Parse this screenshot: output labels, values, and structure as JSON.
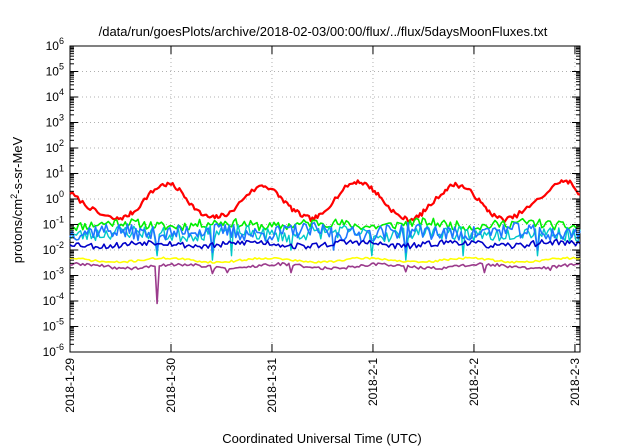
{
  "chart_data": {
    "type": "line",
    "title": "/data/run/goesPlots/archive/2018-02-03/00:00/flux/../flux/5daysMoonFluxes.txt",
    "xlabel": "Coordinated Universal Time (UTC)",
    "ylabel": {
      "base": "protons/cm",
      "sup": "2",
      "rest": "-s-sr-MeV"
    },
    "x_ticks": [
      "2018-1-29",
      "2018-1-30",
      "2018-1-31",
      "2018-2-1",
      "2018-2-2",
      "2018-2-3"
    ],
    "xlim_days": [
      0,
      5.05
    ],
    "y_scale": "log",
    "ylim_exp": [
      -6,
      6
    ],
    "y_ticks": [
      {
        "base": "10",
        "exp": "-6"
      },
      {
        "base": "10",
        "exp": "-5"
      },
      {
        "base": "10",
        "exp": "-4"
      },
      {
        "base": "10",
        "exp": "-3"
      },
      {
        "base": "10",
        "exp": "-2"
      },
      {
        "base": "10",
        "exp": "-1"
      },
      {
        "base": "10",
        "exp": "0"
      },
      {
        "base": "10",
        "exp": "1"
      },
      {
        "base": "10",
        "exp": "2"
      },
      {
        "base": "10",
        "exp": "3"
      },
      {
        "base": "10",
        "exp": "4"
      },
      {
        "base": "10",
        "exp": "5"
      },
      {
        "base": "10",
        "exp": "6"
      }
    ],
    "grid": true,
    "legend": "none",
    "series": [
      {
        "color": "#ff0000",
        "width": 2.2,
        "points": [
          [
            0,
            1.8
          ],
          [
            0.15,
            0.6
          ],
          [
            0.3,
            0.25
          ],
          [
            0.45,
            0.16
          ],
          [
            0.55,
            0.2
          ],
          [
            0.65,
            0.35
          ],
          [
            0.78,
            1.5
          ],
          [
            0.9,
            3.5
          ],
          [
            1.0,
            3.8
          ],
          [
            1.1,
            2.0
          ],
          [
            1.2,
            0.6
          ],
          [
            1.3,
            0.25
          ],
          [
            1.4,
            0.18
          ],
          [
            1.5,
            0.22
          ],
          [
            1.6,
            0.3
          ],
          [
            1.75,
            1.5
          ],
          [
            1.9,
            3.5
          ],
          [
            2.0,
            2.5
          ],
          [
            2.1,
            1.0
          ],
          [
            2.2,
            0.4
          ],
          [
            2.3,
            0.22
          ],
          [
            2.4,
            0.16
          ],
          [
            2.5,
            0.25
          ],
          [
            2.6,
            0.8
          ],
          [
            2.75,
            3.5
          ],
          [
            2.85,
            5.0
          ],
          [
            2.95,
            3.5
          ],
          [
            3.05,
            1.5
          ],
          [
            3.15,
            0.5
          ],
          [
            3.25,
            0.22
          ],
          [
            3.35,
            0.15
          ],
          [
            3.45,
            0.2
          ],
          [
            3.55,
            0.5
          ],
          [
            3.7,
            2.0
          ],
          [
            3.8,
            3.8
          ],
          [
            3.9,
            3.0
          ],
          [
            4.0,
            1.5
          ],
          [
            4.1,
            0.5
          ],
          [
            4.2,
            0.22
          ],
          [
            4.3,
            0.15
          ],
          [
            4.4,
            0.2
          ],
          [
            4.55,
            0.5
          ],
          [
            4.7,
            1.5
          ],
          [
            4.85,
            5.0
          ],
          [
            4.95,
            4.5
          ],
          [
            5.05,
            1.5
          ]
        ]
      },
      {
        "color": "#00ee00",
        "width": 1.6,
        "base": 0.1,
        "amp": 0.18,
        "seed": 11
      },
      {
        "color": "#00c8c8",
        "width": 1.4,
        "base": 0.045,
        "amp": 0.28,
        "seed": 23,
        "dips": [
          [
            0.86,
            0.006
          ],
          [
            1.4,
            0.004
          ],
          [
            1.6,
            0.006
          ],
          [
            2.18,
            0.01
          ],
          [
            2.98,
            0.006
          ],
          [
            3.32,
            0.004
          ],
          [
            3.9,
            0.006
          ],
          [
            4.62,
            0.006
          ]
        ]
      },
      {
        "color": "#1e78ff",
        "width": 1.6,
        "base": 0.05,
        "amp": 0.3,
        "seed": 37,
        "dips": [
          [
            0.86,
            0.01
          ],
          [
            1.4,
            0.008
          ],
          [
            2.6,
            0.01
          ],
          [
            3.32,
            0.008
          ],
          [
            4.62,
            0.01
          ]
        ]
      },
      {
        "color": "#0000c8",
        "width": 1.6,
        "base": 0.017,
        "amp": 0.12,
        "seed": 53
      },
      {
        "color": "#ffff00",
        "width": 1.6,
        "base": 0.004,
        "amp": 0.04,
        "seed": 71
      },
      {
        "color": "#9b3b8c",
        "width": 1.6,
        "base": 0.0023,
        "amp": 0.06,
        "seed": 89,
        "dips": [
          [
            0.86,
            8e-05
          ],
          [
            1.4,
            0.0012
          ],
          [
            1.55,
            0.0013
          ],
          [
            2.18,
            0.0013
          ],
          [
            3.32,
            0.0014
          ],
          [
            4.1,
            0.0013
          ],
          [
            4.75,
            0.0016
          ]
        ]
      }
    ]
  }
}
